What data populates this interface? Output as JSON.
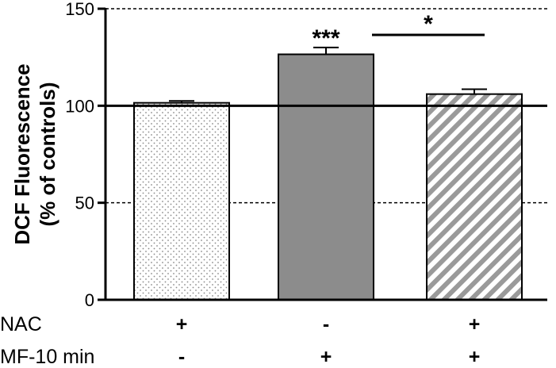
{
  "chart_data": {
    "type": "bar",
    "title": "",
    "xlabel": "",
    "ylabel": [
      "DCF Fluorescence",
      "(% of controls)"
    ],
    "ylim": [
      0,
      150
    ],
    "yticks": [
      "0",
      "50",
      "100",
      "150"
    ],
    "grid": "dashed lines at y = 50 and y = 150; solid reference line at y = 100",
    "reference_line": 100,
    "bars": [
      {
        "value": 101.5,
        "error": 1.0,
        "fill": "dotted",
        "annotation": ""
      },
      {
        "value": 126.5,
        "error": 3.5,
        "fill": "#8c8c8c",
        "annotation": "***"
      },
      {
        "value": 106.0,
        "error": 2.5,
        "fill": "diagonal-stripes",
        "annotation": ""
      }
    ],
    "comparison": {
      "from_bar": 1,
      "to_bar": 2,
      "label": "*"
    },
    "conditions": [
      {
        "label": "NAC",
        "values": [
          "+",
          "-",
          "+"
        ]
      },
      {
        "label": "MF-10 min",
        "values": [
          "-",
          "+",
          "+"
        ]
      }
    ],
    "colors": {
      "bar_gray": "#8c8c8c",
      "stripe": "#9a9a9a",
      "dot": "#8a8a8a",
      "axis": "#000000"
    }
  }
}
